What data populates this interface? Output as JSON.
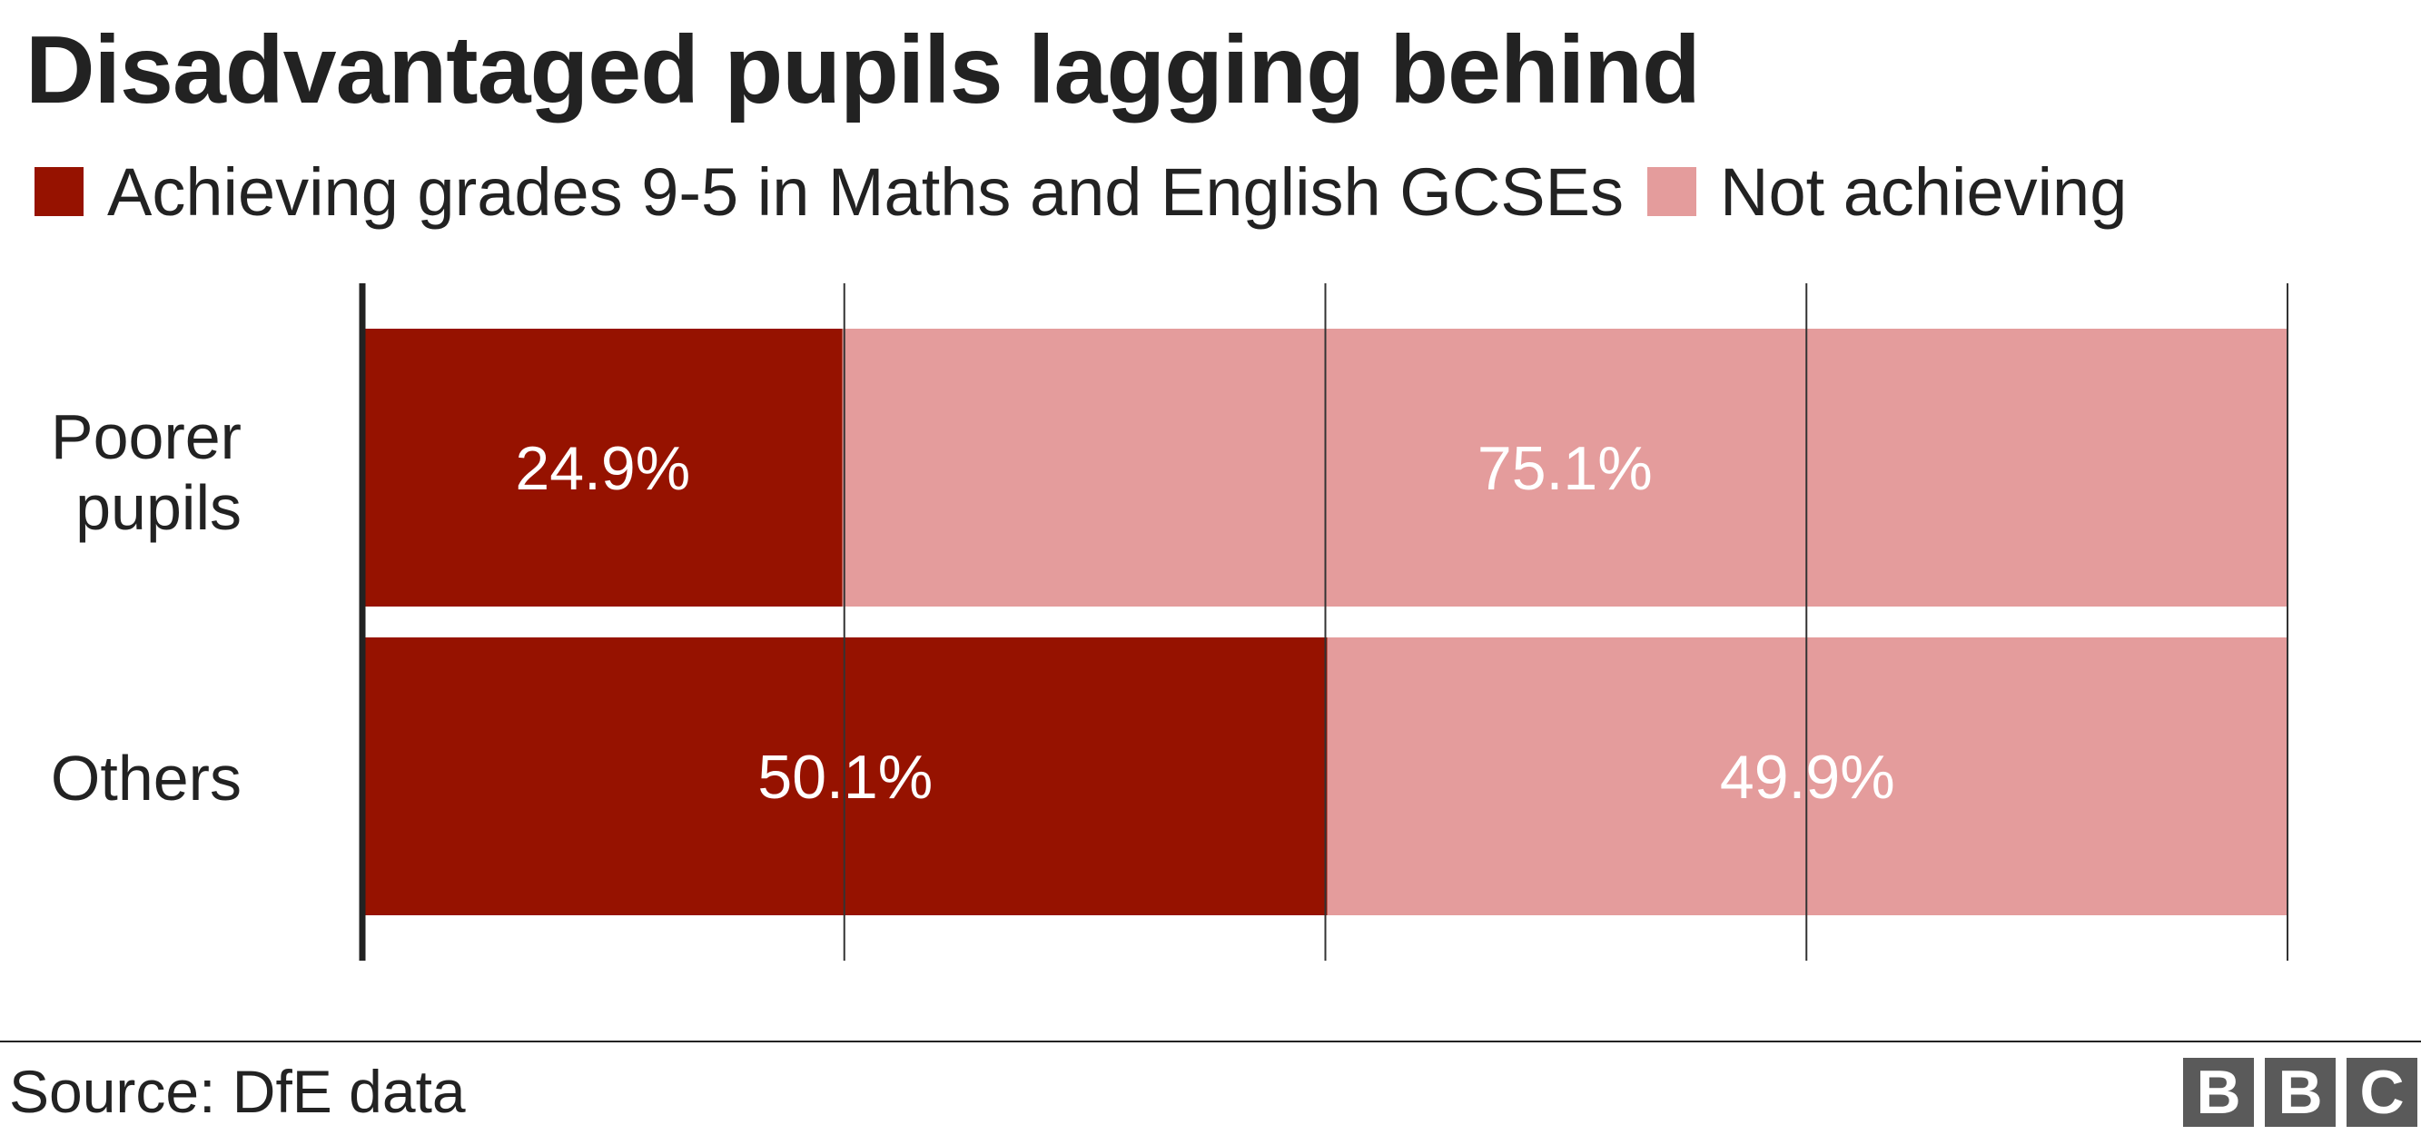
{
  "title": "Disadvantaged pupils lagging behind",
  "legend": [
    {
      "label": "Achieving grades 9-5 in Maths and English GCSEs",
      "color": "#961200"
    },
    {
      "label": "Not achieving",
      "color": "#e49c9c"
    }
  ],
  "source": "Source: DfE data",
  "logo": [
    "B",
    "B",
    "C"
  ],
  "chart_data": {
    "type": "bar",
    "orientation": "horizontal",
    "stacked": true,
    "categories": [
      "Poorer\npupils",
      "Others"
    ],
    "series": [
      {
        "name": "Achieving grades 9-5 in Maths and English GCSEs",
        "values": [
          24.9,
          50.1
        ],
        "labels": [
          "24.9%",
          "50.1%"
        ],
        "color": "#961200"
      },
      {
        "name": "Not achieving",
        "values": [
          75.1,
          49.9
        ],
        "labels": [
          "75.1%",
          "49.9%"
        ],
        "color": "#e49c9c"
      }
    ],
    "xlim": [
      0,
      100
    ],
    "gridlines": [
      0,
      25,
      50,
      75,
      100
    ],
    "grid": true,
    "legend_position": "top-left"
  }
}
